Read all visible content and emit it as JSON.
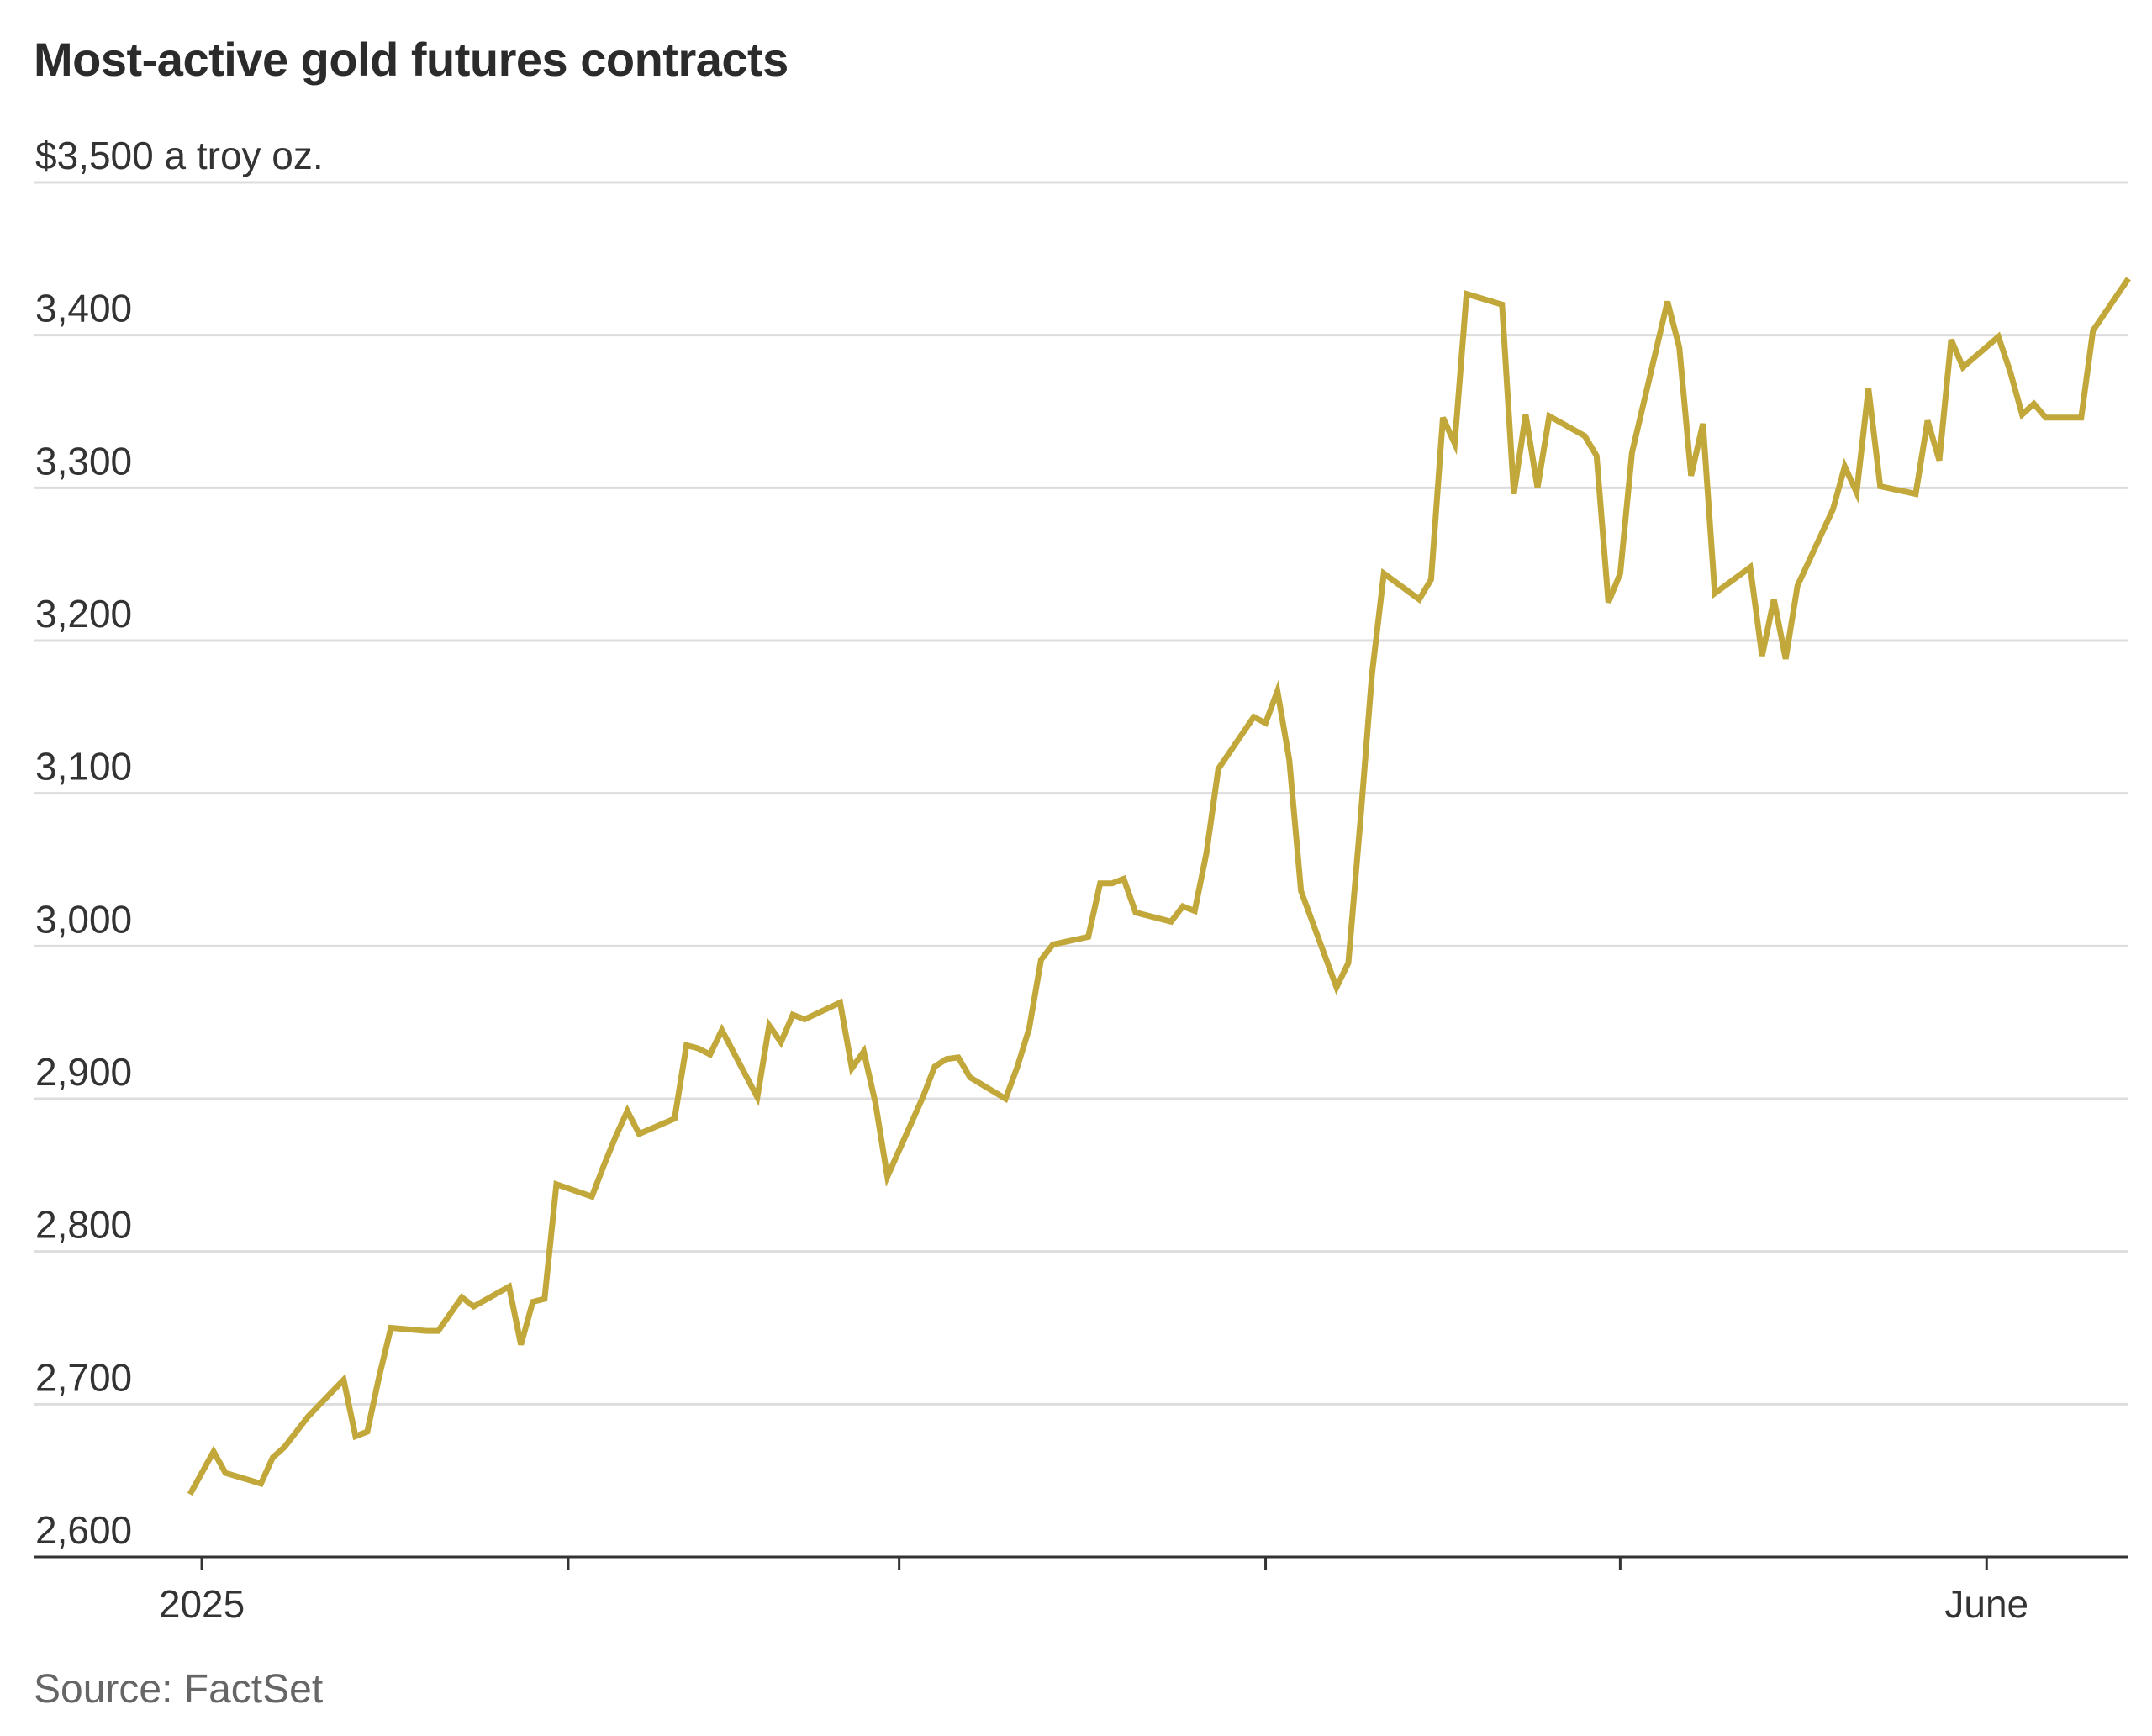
{
  "title": "Most-active gold futures contracts",
  "source": "Source: FactSet",
  "colors": {
    "line": "#C2A83A",
    "grid": "#DDDDDD",
    "axis": "#333333"
  },
  "chart_data": {
    "type": "line",
    "title": "Most-active gold futures contracts",
    "unit_label": "$3,500 a troy oz.",
    "y_ticks": [
      {
        "value": 3500,
        "label": "$3,500 a troy oz."
      },
      {
        "value": 3400,
        "label": "3,400"
      },
      {
        "value": 3300,
        "label": "3,300"
      },
      {
        "value": 3200,
        "label": "3,200"
      },
      {
        "value": 3100,
        "label": "3,100"
      },
      {
        "value": 3000,
        "label": "3,000"
      },
      {
        "value": 2900,
        "label": "2,900"
      },
      {
        "value": 2800,
        "label": "2,800"
      },
      {
        "value": 2700,
        "label": "2,700"
      },
      {
        "value": 2600,
        "label": "2,600"
      }
    ],
    "ylim": [
      2600,
      3500
    ],
    "xlim": [
      "2024-12-31",
      "2025-06-13"
    ],
    "x_ticks": [
      {
        "date": "2025-01-01",
        "label": "2025"
      },
      {
        "date": "2025-02-01",
        "label": ""
      },
      {
        "date": "2025-03-01",
        "label": ""
      },
      {
        "date": "2025-04-01",
        "label": ""
      },
      {
        "date": "2025-05-01",
        "label": ""
      },
      {
        "date": "2025-06-01",
        "label": "June"
      }
    ],
    "grid": true,
    "series": [
      {
        "points": [
          [
            "2024-12-31",
            2641
          ],
          [
            "2025-01-02",
            2669
          ],
          [
            "2025-01-03",
            2655
          ],
          [
            "2025-01-06",
            2648
          ],
          [
            "2025-01-07",
            2665
          ],
          [
            "2025-01-08",
            2672
          ],
          [
            "2025-01-10",
            2692
          ],
          [
            "2025-01-13",
            2716
          ],
          [
            "2025-01-14",
            2679
          ],
          [
            "2025-01-15",
            2682
          ],
          [
            "2025-01-16",
            2718
          ],
          [
            "2025-01-17",
            2750
          ],
          [
            "2025-01-20",
            2748
          ],
          [
            "2025-01-21",
            2748
          ],
          [
            "2025-01-22",
            2759
          ],
          [
            "2025-01-23",
            2770
          ],
          [
            "2025-01-24",
            2764
          ],
          [
            "2025-01-27",
            2777
          ],
          [
            "2025-01-28",
            2739
          ],
          [
            "2025-01-29",
            2767
          ],
          [
            "2025-01-30",
            2769
          ],
          [
            "2025-01-31",
            2844
          ],
          [
            "2025-02-03",
            2836
          ],
          [
            "2025-02-04",
            2856
          ],
          [
            "2025-02-05",
            2875
          ],
          [
            "2025-02-06",
            2892
          ],
          [
            "2025-02-07",
            2877
          ],
          [
            "2025-02-10",
            2887
          ],
          [
            "2025-02-11",
            2935
          ],
          [
            "2025-02-12",
            2933
          ],
          [
            "2025-02-13",
            2929
          ],
          [
            "2025-02-14",
            2945
          ],
          [
            "2025-02-17",
            2901
          ],
          [
            "2025-02-18",
            2948
          ],
          [
            "2025-02-19",
            2937
          ],
          [
            "2025-02-20",
            2955
          ],
          [
            "2025-02-21",
            2952
          ],
          [
            "2025-02-24",
            2963
          ],
          [
            "2025-02-25",
            2920
          ],
          [
            "2025-02-26",
            2931
          ],
          [
            "2025-02-27",
            2897
          ],
          [
            "2025-02-28",
            2849
          ],
          [
            "2025-03-03",
            2901
          ],
          [
            "2025-03-04",
            2921
          ],
          [
            "2025-03-05",
            2926
          ],
          [
            "2025-03-06",
            2927
          ],
          [
            "2025-03-07",
            2914
          ],
          [
            "2025-03-10",
            2900
          ],
          [
            "2025-03-11",
            2921
          ],
          [
            "2025-03-12",
            2946
          ],
          [
            "2025-03-13",
            2991
          ],
          [
            "2025-03-14",
            3001
          ],
          [
            "2025-03-17",
            3006
          ],
          [
            "2025-03-18",
            3041
          ],
          [
            "2025-03-19",
            3041
          ],
          [
            "2025-03-20",
            3044
          ],
          [
            "2025-03-21",
            3022
          ],
          [
            "2025-03-24",
            3016
          ],
          [
            "2025-03-25",
            3026
          ],
          [
            "2025-03-26",
            3023
          ],
          [
            "2025-03-27",
            3061
          ],
          [
            "2025-03-28",
            3116
          ],
          [
            "2025-03-31",
            3150
          ],
          [
            "2025-04-01",
            3146
          ],
          [
            "2025-04-02",
            3167
          ],
          [
            "2025-04-03",
            3122
          ],
          [
            "2025-04-04",
            3036
          ],
          [
            "2025-04-07",
            2973
          ],
          [
            "2025-04-08",
            2989
          ],
          [
            "2025-04-09",
            3080
          ],
          [
            "2025-04-10",
            3178
          ],
          [
            "2025-04-11",
            3244
          ],
          [
            "2025-04-14",
            3227
          ],
          [
            "2025-04-15",
            3240
          ],
          [
            "2025-04-16",
            3346
          ],
          [
            "2025-04-17",
            3329
          ],
          [
            "2025-04-18",
            3427
          ],
          [
            "2025-04-21",
            3420
          ],
          [
            "2025-04-22",
            3296
          ],
          [
            "2025-04-23",
            3348
          ],
          [
            "2025-04-24",
            3300
          ],
          [
            "2025-04-25",
            3347
          ],
          [
            "2025-04-28",
            3334
          ],
          [
            "2025-04-29",
            3321
          ],
          [
            "2025-04-30",
            3225
          ],
          [
            "2025-05-01",
            3244
          ],
          [
            "2025-05-02",
            3323
          ],
          [
            "2025-05-05",
            3422
          ],
          [
            "2025-05-06",
            3392
          ],
          [
            "2025-05-07",
            3308
          ],
          [
            "2025-05-08",
            3342
          ],
          [
            "2025-05-09",
            3231
          ],
          [
            "2025-05-12",
            3248
          ],
          [
            "2025-05-13",
            3190
          ],
          [
            "2025-05-14",
            3227
          ],
          [
            "2025-05-15",
            3188
          ],
          [
            "2025-05-16",
            3236
          ],
          [
            "2025-05-19",
            3286
          ],
          [
            "2025-05-20",
            3314
          ],
          [
            "2025-05-21",
            3297
          ],
          [
            "2025-05-22",
            3365
          ],
          [
            "2025-05-23",
            3301
          ],
          [
            "2025-05-26",
            3296
          ],
          [
            "2025-05-27",
            3344
          ],
          [
            "2025-05-28",
            3318
          ],
          [
            "2025-05-29",
            3397
          ],
          [
            "2025-05-30",
            3379
          ],
          [
            "2025-06-02",
            3399
          ],
          [
            "2025-06-03",
            3376
          ],
          [
            "2025-06-04",
            3348
          ],
          [
            "2025-06-05",
            3355
          ],
          [
            "2025-06-06",
            3346
          ],
          [
            "2025-06-09",
            3346
          ],
          [
            "2025-06-10",
            3403
          ],
          [
            "2025-06-13",
            3437
          ]
        ]
      }
    ]
  }
}
